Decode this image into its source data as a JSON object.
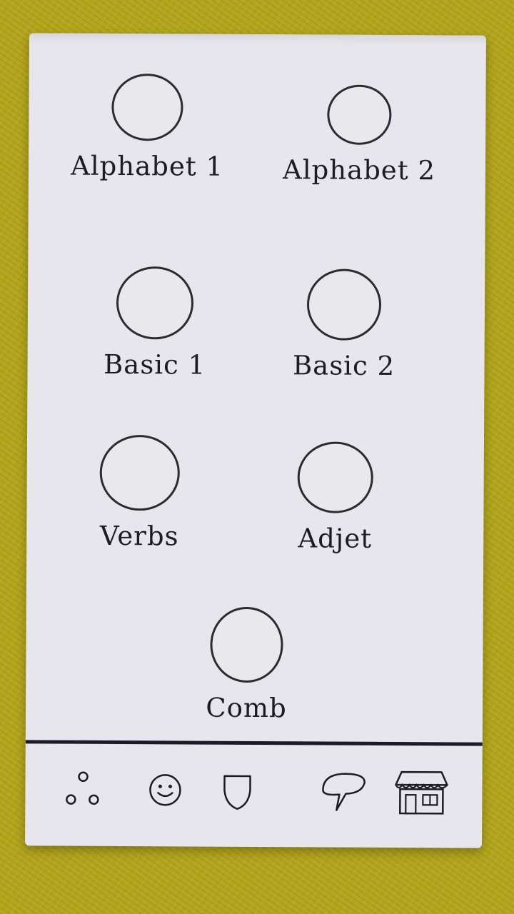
{
  "lessons": [
    {
      "id": "alphabet-1",
      "label": "Alphabet 1"
    },
    {
      "id": "alphabet-2",
      "label": "Alphabet 2"
    },
    {
      "id": "basic-1",
      "label": "Basic 1"
    },
    {
      "id": "basic-2",
      "label": "Basic 2"
    },
    {
      "id": "verbs",
      "label": "Verbs"
    },
    {
      "id": "adjet",
      "label": "Adjet"
    },
    {
      "id": "comb",
      "label": "Comb"
    }
  ],
  "bottom_nav": [
    {
      "icon": "dots-icon"
    },
    {
      "icon": "smiley-icon"
    },
    {
      "icon": "shield-icon"
    },
    {
      "icon": "speech-bubble-icon"
    },
    {
      "icon": "shop-icon"
    }
  ]
}
